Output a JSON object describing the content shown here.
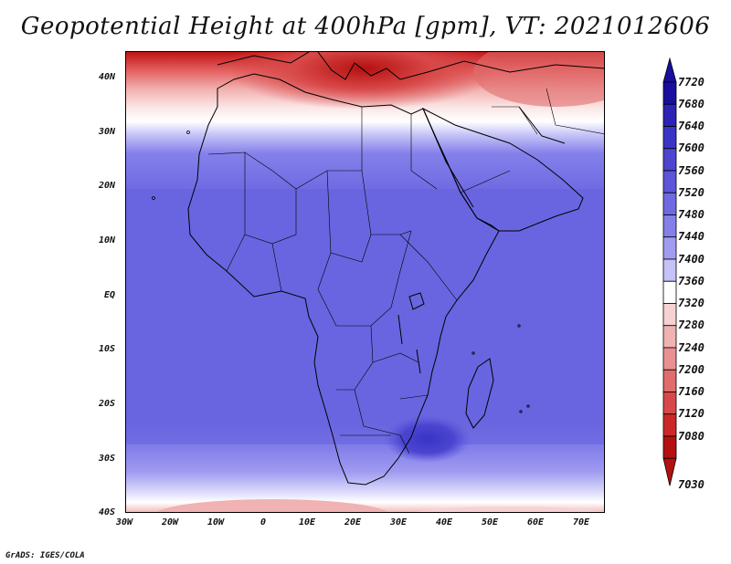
{
  "title": "Geopotential Height at 400hPa [gpm], VT: 2021012606",
  "footer": "GrADS: IGES/COLA",
  "map": {
    "lon_range": [
      -30,
      75
    ],
    "lat_range": [
      -40,
      45
    ],
    "lat_ticks": [
      "40N",
      "30N",
      "20N",
      "10N",
      "EQ",
      "10S",
      "20S",
      "30S",
      "40S"
    ],
    "lon_ticks": [
      "30W",
      "20W",
      "10W",
      "0",
      "10E",
      "20E",
      "30E",
      "40E",
      "50E",
      "60E",
      "70E"
    ]
  },
  "colorbar": {
    "levels": [
      "7720",
      "7680",
      "7640",
      "7600",
      "7560",
      "7520",
      "7480",
      "7440",
      "7400",
      "7360",
      "7320",
      "7280",
      "7240",
      "7200",
      "7160",
      "7120",
      "7080",
      "7030"
    ],
    "colors": [
      "#1a0ea0",
      "#2b23b5",
      "#3a34c6",
      "#4b45d0",
      "#5c56da",
      "#6f6ae2",
      "#8480ea",
      "#a09cf1",
      "#c4c2f7",
      "#ffffff",
      "#f6d2d2",
      "#f0b2b2",
      "#e99090",
      "#e16c6c",
      "#d84848",
      "#cc2828",
      "#b51010"
    ]
  }
}
